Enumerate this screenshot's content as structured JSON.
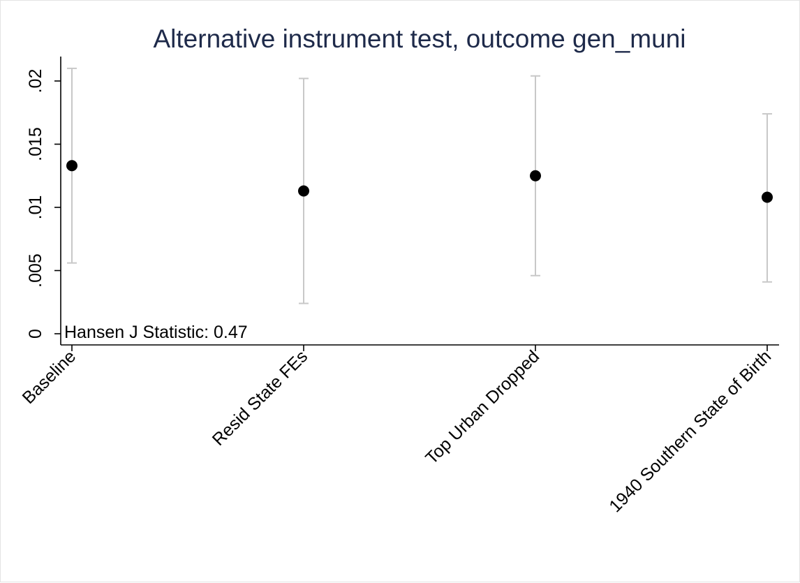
{
  "chart_data": {
    "type": "scatter",
    "title": "Alternative instrument test, outcome gen_muni",
    "xlabel": "",
    "ylabel": "",
    "categories": [
      "Baseline",
      "Resid State FEs",
      "Top Urban Dropped",
      "1940 Southern State of Birth"
    ],
    "estimates": [
      0.0133,
      0.0113,
      0.0125,
      0.0108
    ],
    "ci_lower": [
      0.0056,
      0.0024,
      0.0046,
      0.0041
    ],
    "ci_upper": [
      0.021,
      0.0202,
      0.0204,
      0.0174
    ],
    "y_ticks": [
      {
        "value": 0,
        "label": "0"
      },
      {
        "value": 0.005,
        "label": ".005"
      },
      {
        "value": 0.01,
        "label": ".01"
      },
      {
        "value": 0.015,
        "label": ".015"
      },
      {
        "value": 0.02,
        "label": ".02"
      }
    ],
    "annotation": "Hansen J Statistic: 0.47",
    "grid": false,
    "colors": {
      "point": "#000000",
      "ci": "#c8c8c8",
      "title": "#1e2a4a",
      "axis": "#000000"
    }
  }
}
